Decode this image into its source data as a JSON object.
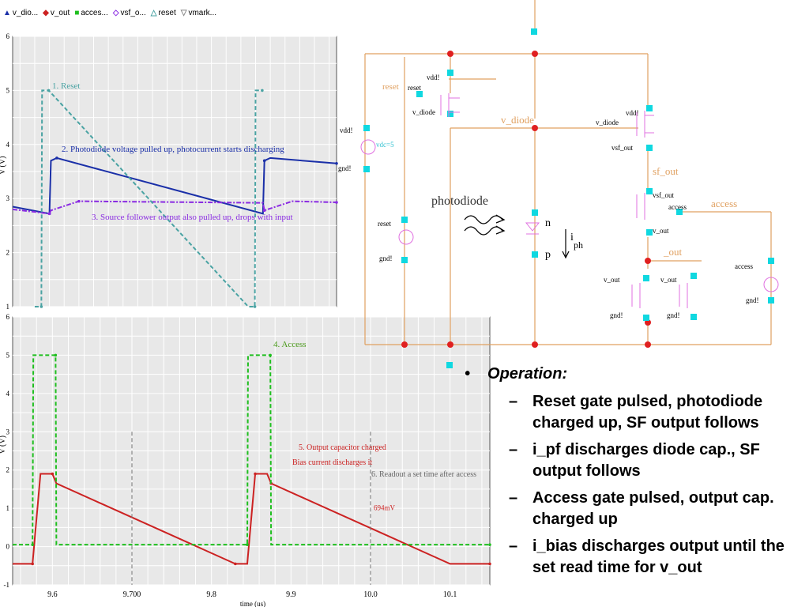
{
  "legend": [
    {
      "name": "v_dio...",
      "color": "#1a2fa8",
      "marker": "▲"
    },
    {
      "name": "v_out",
      "color": "#cc2222",
      "marker": "◆"
    },
    {
      "name": "acces...",
      "color": "#1fbf1f",
      "marker": "■"
    },
    {
      "name": "vsf_o...",
      "color": "#8a2be2",
      "marker": "◇"
    },
    {
      "name": "reset",
      "color": "#4aa3a3",
      "marker": "△"
    },
    {
      "name": "vmark...",
      "color": "#888888",
      "marker": "▽"
    }
  ],
  "chart_data": [
    {
      "type": "line",
      "ylabel": "V (V)",
      "ylim": [
        1,
        6
      ],
      "yticks": [
        "1",
        "2",
        "3",
        "4",
        "5",
        "6"
      ],
      "xlim": [
        9.55,
        9.99
      ],
      "series": [
        {
          "name": "v_diode",
          "color": "#1a2fa8",
          "x": [
            9.55,
            9.6,
            9.602,
            9.61,
            9.89,
            9.892,
            9.9,
            9.99
          ],
          "y": [
            2.85,
            2.72,
            3.7,
            3.75,
            2.72,
            3.7,
            3.75,
            3.65
          ]
        },
        {
          "name": "vsf_out",
          "color": "#8a2be2",
          "x": [
            9.55,
            9.6,
            9.602,
            9.64,
            9.89,
            9.892,
            9.93,
            9.99
          ],
          "y": [
            2.8,
            2.72,
            2.78,
            2.95,
            2.92,
            2.78,
            2.95,
            2.93
          ]
        },
        {
          "name": "reset",
          "color": "#4aa3a3",
          "x": [
            9.58,
            9.589,
            9.59,
            9.599,
            9.87,
            9.879,
            9.88,
            9.889
          ],
          "y": [
            1,
            1,
            5,
            5,
            1,
            1,
            5,
            5
          ]
        }
      ],
      "annotations": [
        {
          "text": "1. Reset",
          "color": "#4aa3a3"
        },
        {
          "text": "2. Photodiode voltage pulled up, photocurrent starts discharging",
          "color": "#1a2fa8"
        },
        {
          "text": "3. Source follower output also pulled up, drops with input",
          "color": "#8a2be2"
        }
      ]
    },
    {
      "type": "line",
      "ylabel": "V (V)",
      "xlabel": "time (us)",
      "ylim": [
        -1,
        6
      ],
      "yticks": [
        "-1",
        "0",
        "1",
        "2",
        "3",
        "4",
        "5",
        "6"
      ],
      "xticks": [
        "9.6",
        "9.700",
        "9.8",
        "9.9",
        "10.0",
        "10.1"
      ],
      "xtick_values": [
        9.6,
        9.7,
        9.8,
        9.9,
        10.0,
        10.1
      ],
      "xlim": [
        9.55,
        10.15
      ],
      "series": [
        {
          "name": "v_out",
          "color": "#cc2222",
          "x": [
            9.55,
            9.575,
            9.585,
            9.6,
            9.605,
            9.83,
            9.845,
            9.855,
            9.87,
            9.875,
            10.1,
            10.15
          ],
          "y": [
            -0.45,
            -0.45,
            1.9,
            1.9,
            1.65,
            -0.45,
            -0.45,
            1.9,
            1.9,
            1.65,
            -0.45,
            -0.45
          ]
        },
        {
          "name": "access",
          "color": "#1fbf1f",
          "x": [
            9.55,
            9.575,
            9.576,
            9.604,
            9.605,
            9.845,
            9.846,
            9.874,
            9.875,
            10.15
          ],
          "y": [
            0.05,
            0.05,
            5,
            5,
            0.05,
            0.05,
            5,
            5,
            0.05,
            0.05
          ]
        }
      ],
      "markers": [
        {
          "x": 9.7,
          "label": ""
        },
        {
          "x": 10.0,
          "label": "694mV"
        }
      ],
      "annotations": [
        {
          "text": "4. Access",
          "color": "#4a9a1a"
        },
        {
          "text": "5.  Output capacitor charged",
          "color": "#cc2222"
        },
        {
          "text": "Bias current discharges it",
          "color": "#cc2222"
        },
        {
          "text": "6. Readout a set time after access",
          "color": "#666666"
        }
      ]
    }
  ],
  "schematic": {
    "labels": {
      "vdd_left": "vdd!",
      "gnd_left": "gnd!",
      "vdc": "vdc=5",
      "reset_top": "reset",
      "reset_pin": "reset",
      "vdd_reset": "vdd!",
      "v_diode_a": "v_diode",
      "v_diode_net": "v_diode",
      "vdd_sf": "vdd!",
      "v_diode_b": "v_diode",
      "vsf_out_a": "vsf_out",
      "sf_out_net": "sf_out",
      "vsf_out_b": "vsf_out",
      "access_pin": "access",
      "access_net": "access",
      "v_out_a": "v_out",
      "out_net": "_out",
      "reset_src": "reset",
      "gnd_reset": "gnd!",
      "photodiode": "photodiode",
      "n": "n",
      "p": "p",
      "i": "i",
      "ph": "ph",
      "access_src": "access",
      "gnd_access": "gnd!",
      "v_out_b": "v_out",
      "v_out_c": "v_out",
      "gnd_b1": "gnd!",
      "gnd_b2": "gnd!"
    }
  },
  "bullets": {
    "marker": "•",
    "heading": "Operation",
    "colon": ":",
    "items": [
      "Reset gate pulsed, photodiode charged up, SF output follows",
      "i_pf discharges diode cap., SF output follows",
      "Access gate pulsed, output cap. charged up",
      "i_bias discharges output until the set read time for v_out"
    ]
  }
}
